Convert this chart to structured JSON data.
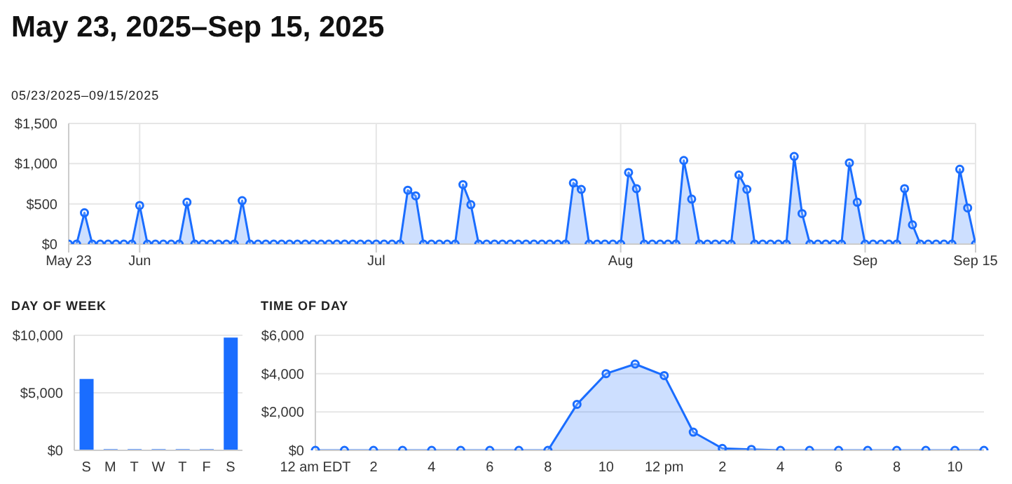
{
  "chart_data": [
    {
      "type": "area",
      "title": "May 23, 2025–Sep 15, 2025",
      "subtitle": "05/23/2025–09/15/2025",
      "marker": "circle",
      "grid": true,
      "legend": false,
      "x": [
        "2025-05-23",
        "2025-05-24",
        "2025-05-25",
        "2025-05-26",
        "2025-05-27",
        "2025-05-28",
        "2025-05-29",
        "2025-05-30",
        "2025-05-31",
        "2025-06-01",
        "2025-06-02",
        "2025-06-03",
        "2025-06-04",
        "2025-06-05",
        "2025-06-06",
        "2025-06-07",
        "2025-06-08",
        "2025-06-09",
        "2025-06-10",
        "2025-06-11",
        "2025-06-12",
        "2025-06-13",
        "2025-06-14",
        "2025-06-15",
        "2025-06-16",
        "2025-06-17",
        "2025-06-18",
        "2025-06-19",
        "2025-06-20",
        "2025-06-21",
        "2025-06-22",
        "2025-06-23",
        "2025-06-24",
        "2025-06-25",
        "2025-06-26",
        "2025-06-27",
        "2025-06-28",
        "2025-06-29",
        "2025-06-30",
        "2025-07-01",
        "2025-07-02",
        "2025-07-03",
        "2025-07-04",
        "2025-07-05",
        "2025-07-06",
        "2025-07-07",
        "2025-07-08",
        "2025-07-09",
        "2025-07-10",
        "2025-07-11",
        "2025-07-12",
        "2025-07-13",
        "2025-07-14",
        "2025-07-15",
        "2025-07-16",
        "2025-07-17",
        "2025-07-18",
        "2025-07-19",
        "2025-07-20",
        "2025-07-21",
        "2025-07-22",
        "2025-07-23",
        "2025-07-24",
        "2025-07-25",
        "2025-07-26",
        "2025-07-27",
        "2025-07-28",
        "2025-07-29",
        "2025-07-30",
        "2025-07-31",
        "2025-08-01",
        "2025-08-02",
        "2025-08-03",
        "2025-08-04",
        "2025-08-05",
        "2025-08-06",
        "2025-08-07",
        "2025-08-08",
        "2025-08-09",
        "2025-08-10",
        "2025-08-11",
        "2025-08-12",
        "2025-08-13",
        "2025-08-14",
        "2025-08-15",
        "2025-08-16",
        "2025-08-17",
        "2025-08-18",
        "2025-08-19",
        "2025-08-20",
        "2025-08-21",
        "2025-08-22",
        "2025-08-23",
        "2025-08-24",
        "2025-08-25",
        "2025-08-26",
        "2025-08-27",
        "2025-08-28",
        "2025-08-29",
        "2025-08-30",
        "2025-08-31",
        "2025-09-01",
        "2025-09-02",
        "2025-09-03",
        "2025-09-04",
        "2025-09-05",
        "2025-09-06",
        "2025-09-07",
        "2025-09-08",
        "2025-09-09",
        "2025-09-10",
        "2025-09-11",
        "2025-09-12",
        "2025-09-13",
        "2025-09-14",
        "2025-09-15"
      ],
      "series": [
        {
          "color": "#1a6dff",
          "values": [
            0,
            0,
            390,
            0,
            0,
            0,
            0,
            0,
            0,
            480,
            0,
            0,
            0,
            0,
            0,
            520,
            0,
            0,
            0,
            0,
            0,
            0,
            540,
            0,
            0,
            0,
            0,
            0,
            0,
            0,
            0,
            0,
            0,
            0,
            0,
            0,
            0,
            0,
            0,
            0,
            0,
            0,
            0,
            670,
            600,
            0,
            0,
            0,
            0,
            0,
            740,
            490,
            0,
            0,
            0,
            0,
            0,
            0,
            0,
            0,
            0,
            0,
            0,
            0,
            760,
            680,
            0,
            0,
            0,
            0,
            0,
            890,
            690,
            0,
            0,
            0,
            0,
            0,
            1040,
            560,
            0,
            0,
            0,
            0,
            0,
            860,
            680,
            0,
            0,
            0,
            0,
            0,
            1090,
            380,
            0,
            0,
            0,
            0,
            0,
            1010,
            520,
            0,
            0,
            0,
            0,
            0,
            690,
            240,
            0,
            0,
            0,
            0,
            0,
            930,
            450,
            0
          ]
        }
      ],
      "xlim": [
        "2025-05-23",
        "2025-09-15"
      ],
      "xticks": [
        {
          "value": "2025-05-23",
          "label": "May 23"
        },
        {
          "value": "2025-06-01",
          "label": "Jun"
        },
        {
          "value": "2025-07-01",
          "label": "Jul"
        },
        {
          "value": "2025-08-01",
          "label": "Aug"
        },
        {
          "value": "2025-09-01",
          "label": "Sep"
        },
        {
          "value": "2025-09-15",
          "label": "Sep 15"
        }
      ],
      "ylim": [
        0,
        1500
      ],
      "yticks": [
        {
          "value": 0,
          "label": "$0"
        },
        {
          "value": 500,
          "label": "$500"
        },
        {
          "value": 1000,
          "label": "$1,000"
        },
        {
          "value": 1500,
          "label": "$1,500"
        }
      ]
    },
    {
      "type": "bar",
      "title": "DAY OF WEEK",
      "grid": "y",
      "legend": false,
      "categories": [
        "S",
        "M",
        "T",
        "W",
        "T",
        "F",
        "S"
      ],
      "series": [
        {
          "color": "#1a6dff",
          "values": [
            6200,
            100,
            100,
            100,
            100,
            100,
            9800
          ]
        }
      ],
      "ylim": [
        0,
        10000
      ],
      "yticks": [
        {
          "value": 0,
          "label": "$0"
        },
        {
          "value": 5000,
          "label": "$5,000"
        },
        {
          "value": 10000,
          "label": "$10,000"
        }
      ]
    },
    {
      "type": "area",
      "title": "TIME OF DAY",
      "marker": "circle",
      "grid": "y",
      "legend": false,
      "categories": [
        "12 am EDT",
        null,
        "2",
        null,
        "4",
        null,
        "6",
        null,
        "8",
        null,
        "10",
        null,
        "12 pm",
        null,
        "2",
        null,
        "4",
        null,
        "6",
        null,
        "8",
        null,
        "10",
        null
      ],
      "series": [
        {
          "color": "#1a6dff",
          "values": [
            0,
            0,
            0,
            0,
            0,
            0,
            0,
            0,
            0,
            2400,
            4000,
            4500,
            3900,
            950,
            100,
            50,
            0,
            0,
            0,
            0,
            0,
            0,
            0,
            0
          ]
        }
      ],
      "ylim": [
        0,
        6000
      ],
      "yticks": [
        {
          "value": 0,
          "label": "$0"
        },
        {
          "value": 2000,
          "label": "$2,000"
        },
        {
          "value": 4000,
          "label": "$4,000"
        },
        {
          "value": 6000,
          "label": "$6,000"
        }
      ]
    }
  ]
}
